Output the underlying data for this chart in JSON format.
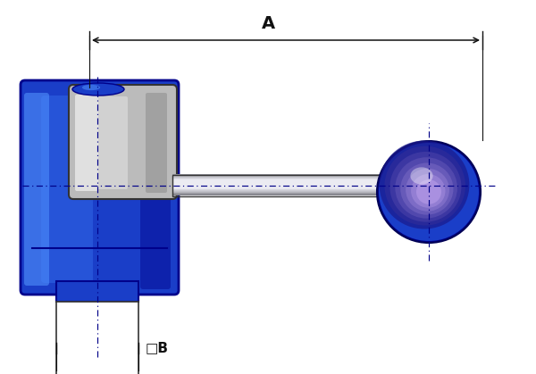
{
  "bg_color": "#ffffff",
  "blue_dark": "#00008b",
  "blue_body": "#1a3ec8",
  "blue_mid": "#2255dd",
  "blue_light": "#4488ff",
  "blue_bright": "#5599ff",
  "blue_very_dark": "#000055",
  "gray_dark": "#333333",
  "gray_rod_dark": "#555555",
  "gray_rod_mid": "#aaaaaa",
  "gray_rod_light": "#dddddd",
  "gray_bushing_dark": "#888888",
  "gray_bushing_mid": "#bbbbbb",
  "gray_bushing_light": "#e0e0e0",
  "dim_color": "#111111",
  "cl_color": "#000088",
  "label_A": "A",
  "label_B": "□B"
}
